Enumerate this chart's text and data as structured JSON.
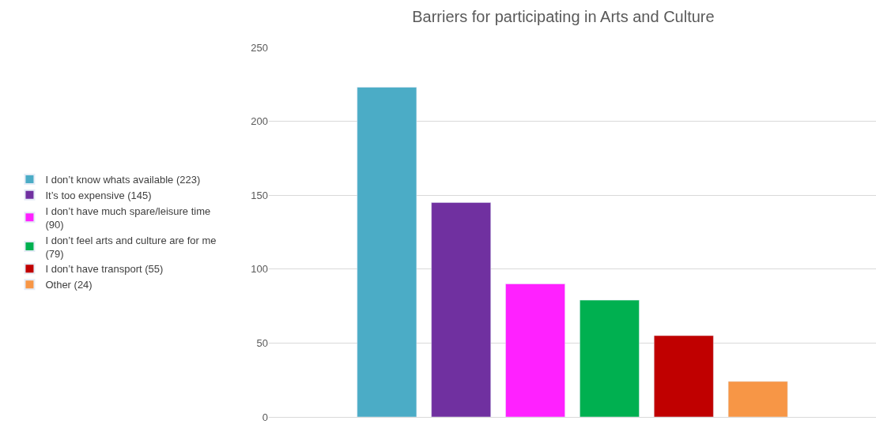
{
  "chart_data": {
    "type": "bar",
    "title": "Barriers for participating in Arts and Culture",
    "categories": [
      null
    ],
    "series": [
      {
        "name": "I don’t know whats available (223)",
        "color": "#4bacc6",
        "values": [
          223
        ]
      },
      {
        "name": "It’s too expensive (145)",
        "color": "#7030a0",
        "values": [
          145
        ]
      },
      {
        "name": "I don’t have much spare/leisure time (90)",
        "color": "#ff21ff",
        "values": [
          90
        ]
      },
      {
        "name": "I don’t feel arts and culture are for me (79)",
        "color": "#00b050",
        "values": [
          79
        ]
      },
      {
        "name": "I don’t have transport (55)",
        "color": "#c00000",
        "values": [
          55
        ]
      },
      {
        "name": "Other (24)",
        "color": "#f79646",
        "values": [
          24
        ]
      }
    ],
    "ylim": [
      0,
      250
    ],
    "yticks": [
      0,
      50,
      100,
      150,
      200,
      250
    ],
    "grid": "y",
    "legend": "left",
    "tick_labels": "y"
  }
}
